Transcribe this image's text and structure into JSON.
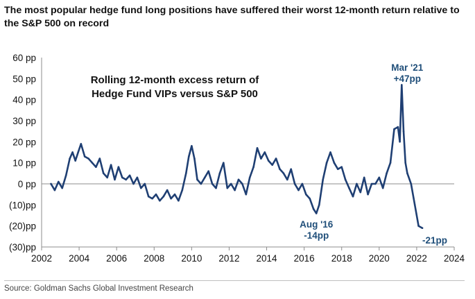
{
  "header": {
    "title": "The most popular hedge fund long positions have suffered their worst 12-month return relative to the S&P 500 on record"
  },
  "footer": {
    "source": "Source: Goldman Sachs Global Investment Research"
  },
  "chart_data": {
    "type": "line",
    "inset_title": [
      "Rolling 12-month excess return of",
      "Hedge Fund VIPs versus S&P 500"
    ],
    "ylim": [
      -30,
      60
    ],
    "xlim": [
      2002,
      2024
    ],
    "y_ticks": [
      {
        "value": 60,
        "label": "60 pp"
      },
      {
        "value": 50,
        "label": "50 pp"
      },
      {
        "value": 40,
        "label": "40 pp"
      },
      {
        "value": 30,
        "label": "30 pp"
      },
      {
        "value": 20,
        "label": "20 pp"
      },
      {
        "value": 10,
        "label": "10 pp"
      },
      {
        "value": 0,
        "label": "0 pp"
      },
      {
        "value": -10,
        "label": "(10)pp"
      },
      {
        "value": -20,
        "label": "(20)pp"
      },
      {
        "value": -30,
        "label": "(30)pp"
      }
    ],
    "x_ticks": [
      "2002",
      "2004",
      "2006",
      "2008",
      "2010",
      "2012",
      "2014",
      "2016",
      "2018",
      "2020",
      "2022",
      "2024"
    ],
    "grid": false,
    "colors": {
      "line": "#1f3f73",
      "annotation": "#1f4e79",
      "zero_line": "#8c8c8c"
    },
    "series": [
      {
        "x": [
          2002.5,
          2002.7,
          2002.9,
          2003.1,
          2003.3,
          2003.5,
          2003.65,
          2003.8,
          2003.95,
          2004.1,
          2004.3,
          2004.5,
          2004.7,
          2004.9,
          2005.1,
          2005.3,
          2005.5,
          2005.7,
          2005.9,
          2006.1,
          2006.3,
          2006.5,
          2006.7,
          2006.9,
          2007.1,
          2007.3,
          2007.5,
          2007.7,
          2007.9,
          2008.1,
          2008.3,
          2008.5,
          2008.7,
          2008.9,
          2009.1,
          2009.3,
          2009.5,
          2009.7,
          2009.85,
          2010.0,
          2010.15,
          2010.3,
          2010.5,
          2010.7,
          2010.9,
          2011.1,
          2011.3,
          2011.5,
          2011.7,
          2011.9,
          2012.1,
          2012.3,
          2012.5,
          2012.7,
          2012.9,
          2013.1,
          2013.3,
          2013.5,
          2013.7,
          2013.9,
          2014.1,
          2014.3,
          2014.5,
          2014.7,
          2014.9,
          2015.1,
          2015.3,
          2015.5,
          2015.7,
          2015.9,
          2016.1,
          2016.3,
          2016.5,
          2016.65,
          2016.8,
          2017.0,
          2017.2,
          2017.4,
          2017.6,
          2017.8,
          2018.0,
          2018.2,
          2018.4,
          2018.6,
          2018.8,
          2019.0,
          2019.2,
          2019.4,
          2019.6,
          2019.8,
          2020.0,
          2020.2,
          2020.4,
          2020.6,
          2020.8,
          2021.0,
          2021.1,
          2021.2,
          2021.3,
          2021.4,
          2021.5,
          2021.7,
          2021.9,
          2022.1,
          2022.3
        ],
        "values": [
          0,
          -3,
          1,
          -2,
          4,
          12,
          15,
          11,
          15,
          19,
          13,
          12,
          10,
          8,
          12,
          5,
          3,
          9,
          2,
          8,
          3,
          2,
          4,
          0,
          3,
          -2,
          0,
          -6,
          -7,
          -5,
          -8,
          -6,
          -3,
          -7,
          -5,
          -8,
          -3,
          5,
          13,
          18,
          12,
          2,
          0,
          3,
          6,
          0,
          -2,
          5,
          10,
          -2,
          0,
          -3,
          2,
          0,
          -5,
          3,
          8,
          17,
          12,
          15,
          11,
          9,
          12,
          7,
          5,
          2,
          7,
          0,
          -3,
          0,
          -5,
          -7,
          -12,
          -14,
          -10,
          2,
          10,
          15,
          10,
          7,
          8,
          2,
          -2,
          -6,
          0,
          -4,
          3,
          -5,
          0,
          0,
          3,
          -2,
          5,
          10,
          26,
          27,
          20,
          47,
          25,
          10,
          5,
          0,
          -10,
          -20,
          -21
        ]
      }
    ],
    "annotations": [
      {
        "x": 2021.2,
        "y": 47,
        "lines": [
          "Mar '21",
          "+47pp"
        ]
      },
      {
        "x": 2016.65,
        "y": -14,
        "lines": [
          "Aug '16",
          "-14pp"
        ]
      },
      {
        "x": 2022.3,
        "y": -21,
        "lines": [
          "-21pp"
        ]
      }
    ]
  }
}
